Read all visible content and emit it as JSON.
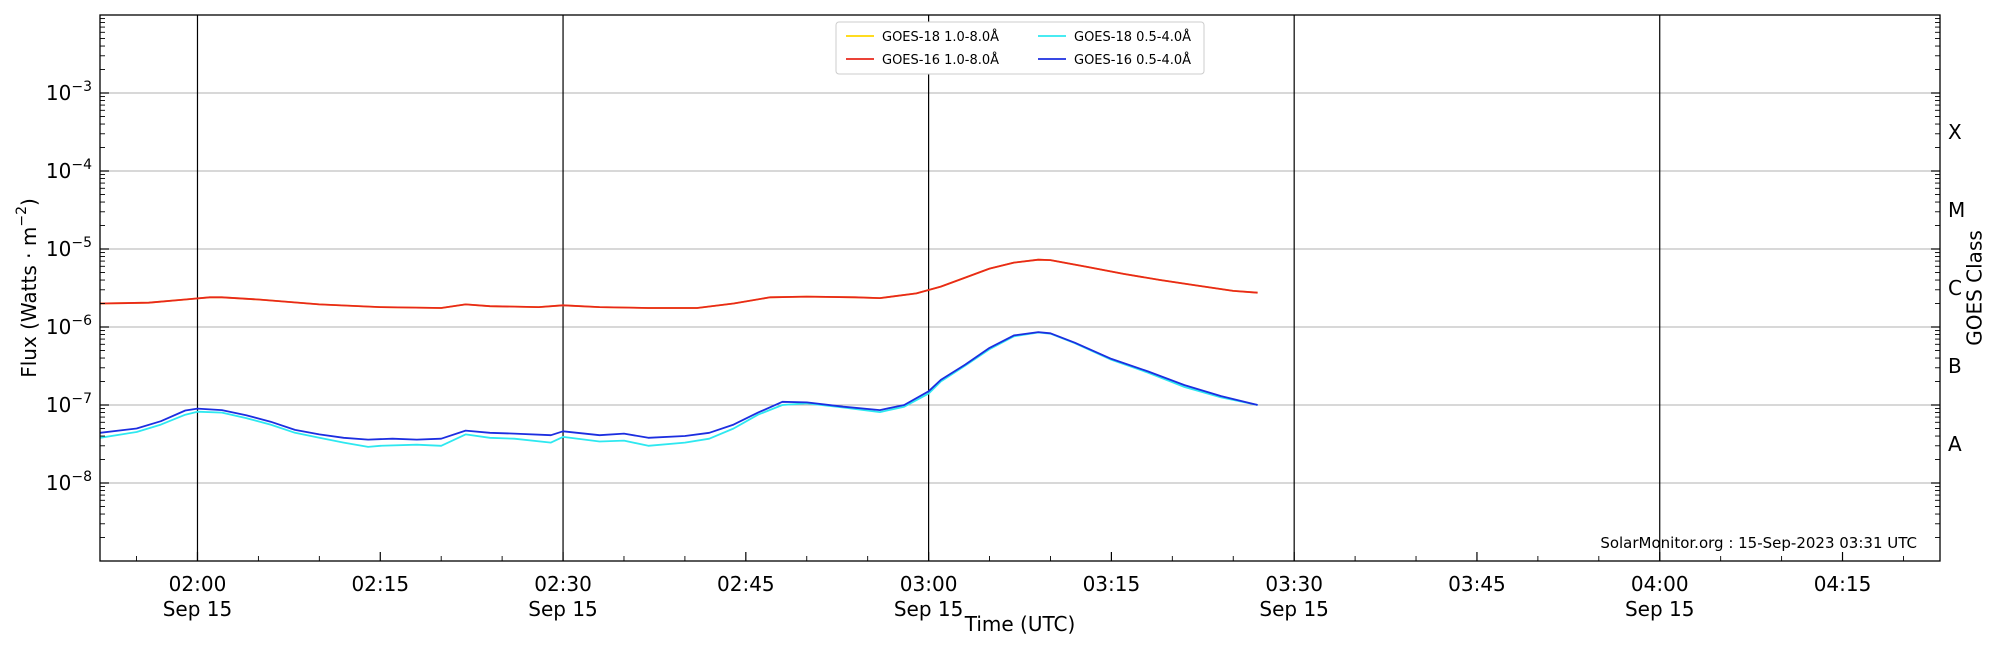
{
  "chart_data": {
    "type": "line",
    "xlabel": "Time (UTC)",
    "ylabel": "Flux (Watts · m",
    "ylabel_sup": "−2",
    "ylabel_close": ")",
    "right_axis_label": "GOES Class",
    "credit": "SolarMonitor.org : 15-Sep-2023 03:31 UTC",
    "y_scale": "log",
    "ylim": [
      1e-09,
      0.01
    ],
    "xlim": [
      "01:52",
      "04:23"
    ],
    "grid": "horizontal at decades; vertical lines every 30 min",
    "legend_position": "top-center",
    "y_ticks": [
      {
        "value": 1e-08,
        "base": "10",
        "exp": "−8"
      },
      {
        "value": 1e-07,
        "base": "10",
        "exp": "−7"
      },
      {
        "value": 1e-06,
        "base": "10",
        "exp": "−6"
      },
      {
        "value": 1e-05,
        "base": "10",
        "exp": "−5"
      },
      {
        "value": 0.0001,
        "base": "10",
        "exp": "−4"
      },
      {
        "value": 0.001,
        "base": "10",
        "exp": "−3"
      }
    ],
    "x_ticks": [
      {
        "time": "02:00",
        "label": "02:00",
        "date": "Sep 15"
      },
      {
        "time": "02:15",
        "label": "02:15",
        "date": ""
      },
      {
        "time": "02:30",
        "label": "02:30",
        "date": "Sep 15"
      },
      {
        "time": "02:45",
        "label": "02:45",
        "date": ""
      },
      {
        "time": "03:00",
        "label": "03:00",
        "date": "Sep 15"
      },
      {
        "time": "03:15",
        "label": "03:15",
        "date": ""
      },
      {
        "time": "03:30",
        "label": "03:30",
        "date": "Sep 15"
      },
      {
        "time": "03:45",
        "label": "03:45",
        "date": ""
      },
      {
        "time": "04:00",
        "label": "04:00",
        "date": "Sep 15"
      },
      {
        "time": "04:15",
        "label": "04:15",
        "date": ""
      }
    ],
    "vertical_lines": [
      "02:00",
      "02:30",
      "03:00",
      "03:30",
      "04:00"
    ],
    "class_labels": [
      {
        "label": "A",
        "value": 3.16e-08
      },
      {
        "label": "B",
        "value": 3.16e-07
      },
      {
        "label": "C",
        "value": 3.16e-06
      },
      {
        "label": "M",
        "value": 3.16e-05
      },
      {
        "label": "X",
        "value": 0.000316
      }
    ],
    "series": [
      {
        "name": "GOES-18 1.0-8.0Å",
        "color": "#ffd700",
        "points": [
          [
            "01:52",
            2e-06
          ],
          [
            "01:56",
            2.05e-06
          ],
          [
            "01:59",
            2.25e-06
          ],
          [
            "02:01",
            2.4e-06
          ],
          [
            "02:02",
            2.4e-06
          ],
          [
            "02:05",
            2.25e-06
          ],
          [
            "02:10",
            1.95e-06
          ],
          [
            "02:15",
            1.8e-06
          ],
          [
            "02:20",
            1.75e-06
          ],
          [
            "02:22",
            1.95e-06
          ],
          [
            "02:24",
            1.85e-06
          ],
          [
            "02:28",
            1.8e-06
          ],
          [
            "02:30",
            1.9e-06
          ],
          [
            "02:33",
            1.8e-06
          ],
          [
            "02:37",
            1.75e-06
          ],
          [
            "02:41",
            1.75e-06
          ],
          [
            "02:44",
            2e-06
          ],
          [
            "02:47",
            2.4e-06
          ],
          [
            "02:50",
            2.45e-06
          ],
          [
            "02:54",
            2.4e-06
          ],
          [
            "02:56",
            2.35e-06
          ],
          [
            "02:59",
            2.7e-06
          ],
          [
            "03:01",
            3.3e-06
          ],
          [
            "03:03",
            4.3e-06
          ],
          [
            "03:05",
            5.6e-06
          ],
          [
            "03:07",
            6.7e-06
          ],
          [
            "03:09",
            7.3e-06
          ],
          [
            "03:10",
            7.2e-06
          ],
          [
            "03:13",
            5.9e-06
          ],
          [
            "03:16",
            4.8e-06
          ],
          [
            "03:19",
            4e-06
          ],
          [
            "03:22",
            3.4e-06
          ],
          [
            "03:25",
            2.9e-06
          ],
          [
            "03:27",
            2.75e-06
          ]
        ]
      },
      {
        "name": "GOES-16 1.0-8.0Å",
        "color": "#e8281c",
        "points": [
          [
            "01:52",
            2e-06
          ],
          [
            "01:56",
            2.05e-06
          ],
          [
            "01:59",
            2.25e-06
          ],
          [
            "02:01",
            2.4e-06
          ],
          [
            "02:02",
            2.4e-06
          ],
          [
            "02:05",
            2.25e-06
          ],
          [
            "02:10",
            1.95e-06
          ],
          [
            "02:15",
            1.8e-06
          ],
          [
            "02:20",
            1.75e-06
          ],
          [
            "02:22",
            1.95e-06
          ],
          [
            "02:24",
            1.85e-06
          ],
          [
            "02:28",
            1.8e-06
          ],
          [
            "02:30",
            1.9e-06
          ],
          [
            "02:33",
            1.8e-06
          ],
          [
            "02:37",
            1.75e-06
          ],
          [
            "02:41",
            1.75e-06
          ],
          [
            "02:44",
            2e-06
          ],
          [
            "02:47",
            2.4e-06
          ],
          [
            "02:50",
            2.45e-06
          ],
          [
            "02:54",
            2.4e-06
          ],
          [
            "02:56",
            2.35e-06
          ],
          [
            "02:59",
            2.7e-06
          ],
          [
            "03:01",
            3.3e-06
          ],
          [
            "03:03",
            4.3e-06
          ],
          [
            "03:05",
            5.6e-06
          ],
          [
            "03:07",
            6.7e-06
          ],
          [
            "03:09",
            7.3e-06
          ],
          [
            "03:10",
            7.2e-06
          ],
          [
            "03:13",
            5.9e-06
          ],
          [
            "03:16",
            4.8e-06
          ],
          [
            "03:19",
            4e-06
          ],
          [
            "03:22",
            3.4e-06
          ],
          [
            "03:25",
            2.9e-06
          ],
          [
            "03:27",
            2.75e-06
          ]
        ]
      },
      {
        "name": "GOES-18 0.5-4.0Å",
        "color": "#2ee8f0",
        "points": [
          [
            "01:52",
            3.8e-08
          ],
          [
            "01:55",
            4.5e-08
          ],
          [
            "01:57",
            5.6e-08
          ],
          [
            "01:59",
            7.5e-08
          ],
          [
            "02:00",
            8.2e-08
          ],
          [
            "02:02",
            8e-08
          ],
          [
            "02:04",
            6.8e-08
          ],
          [
            "02:06",
            5.6e-08
          ],
          [
            "02:08",
            4.4e-08
          ],
          [
            "02:10",
            3.8e-08
          ],
          [
            "02:12",
            3.3e-08
          ],
          [
            "02:14",
            2.9e-08
          ],
          [
            "02:15",
            3e-08
          ],
          [
            "02:18",
            3.1e-08
          ],
          [
            "02:20",
            3e-08
          ],
          [
            "02:22",
            4.2e-08
          ],
          [
            "02:24",
            3.8e-08
          ],
          [
            "02:26",
            3.7e-08
          ],
          [
            "02:29",
            3.3e-08
          ],
          [
            "02:30",
            3.9e-08
          ],
          [
            "02:33",
            3.4e-08
          ],
          [
            "02:35",
            3.5e-08
          ],
          [
            "02:37",
            3e-08
          ],
          [
            "02:40",
            3.3e-08
          ],
          [
            "02:42",
            3.7e-08
          ],
          [
            "02:44",
            5e-08
          ],
          [
            "02:46",
            7.5e-08
          ],
          [
            "02:48",
            1e-07
          ],
          [
            "02:50",
            1.05e-07
          ],
          [
            "02:53",
            9.3e-08
          ],
          [
            "02:56",
            8.1e-08
          ],
          [
            "02:58",
            9.5e-08
          ],
          [
            "03:00",
            1.4e-07
          ],
          [
            "03:01",
            2e-07
          ],
          [
            "03:03",
            3.2e-07
          ],
          [
            "03:05",
            5.2e-07
          ],
          [
            "03:07",
            7.6e-07
          ],
          [
            "03:09",
            8.5e-07
          ],
          [
            "03:10",
            8.2e-07
          ],
          [
            "03:12",
            6.2e-07
          ],
          [
            "03:15",
            3.8e-07
          ],
          [
            "03:18",
            2.6e-07
          ],
          [
            "03:21",
            1.7e-07
          ],
          [
            "03:24",
            1.25e-07
          ],
          [
            "03:27",
            1e-07
          ]
        ]
      },
      {
        "name": "GOES-16 0.5-4.0Å",
        "color": "#1c2ee0",
        "points": [
          [
            "01:52",
            4.4e-08
          ],
          [
            "01:55",
            5e-08
          ],
          [
            "01:57",
            6.2e-08
          ],
          [
            "01:59",
            8.5e-08
          ],
          [
            "02:00",
            9e-08
          ],
          [
            "02:02",
            8.6e-08
          ],
          [
            "02:04",
            7.4e-08
          ],
          [
            "02:06",
            6.1e-08
          ],
          [
            "02:08",
            4.8e-08
          ],
          [
            "02:10",
            4.2e-08
          ],
          [
            "02:12",
            3.8e-08
          ],
          [
            "02:14",
            3.6e-08
          ],
          [
            "02:16",
            3.7e-08
          ],
          [
            "02:18",
            3.6e-08
          ],
          [
            "02:20",
            3.7e-08
          ],
          [
            "02:22",
            4.7e-08
          ],
          [
            "02:24",
            4.4e-08
          ],
          [
            "02:26",
            4.3e-08
          ],
          [
            "02:29",
            4.1e-08
          ],
          [
            "02:30",
            4.6e-08
          ],
          [
            "02:33",
            4.1e-08
          ],
          [
            "02:35",
            4.3e-08
          ],
          [
            "02:37",
            3.8e-08
          ],
          [
            "02:40",
            4e-08
          ],
          [
            "02:42",
            4.4e-08
          ],
          [
            "02:44",
            5.6e-08
          ],
          [
            "02:46",
            8e-08
          ],
          [
            "02:48",
            1.1e-07
          ],
          [
            "02:50",
            1.08e-07
          ],
          [
            "02:53",
            9.5e-08
          ],
          [
            "02:56",
            8.6e-08
          ],
          [
            "02:58",
            1e-07
          ],
          [
            "03:00",
            1.5e-07
          ],
          [
            "03:01",
            2.1e-07
          ],
          [
            "03:03",
            3.3e-07
          ],
          [
            "03:05",
            5.4e-07
          ],
          [
            "03:07",
            7.8e-07
          ],
          [
            "03:09",
            8.6e-07
          ],
          [
            "03:10",
            8.3e-07
          ],
          [
            "03:12",
            6.3e-07
          ],
          [
            "03:15",
            3.9e-07
          ],
          [
            "03:18",
            2.7e-07
          ],
          [
            "03:21",
            1.8e-07
          ],
          [
            "03:24",
            1.3e-07
          ],
          [
            "03:27",
            1e-07
          ]
        ]
      }
    ]
  }
}
